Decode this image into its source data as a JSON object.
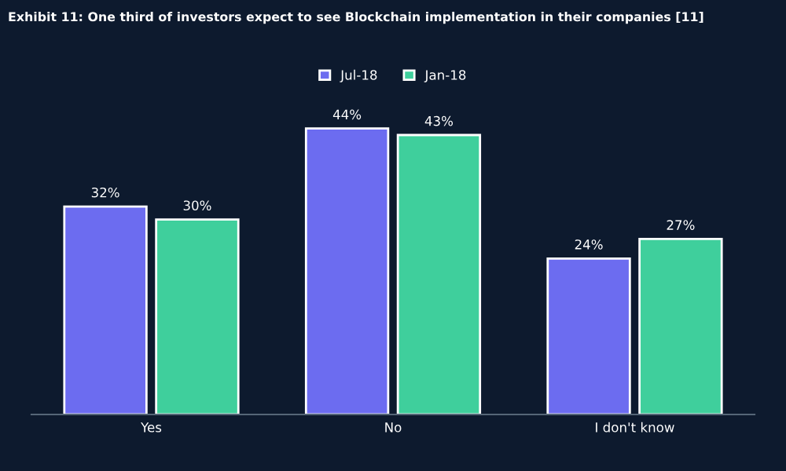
{
  "chart_data": {
    "type": "bar",
    "title": "Exhibit 11: One third of investors expect to see Blockchain implementation in their companies [11]",
    "categories": [
      "Yes",
      "No",
      "I don't know"
    ],
    "series": [
      {
        "name": "Jul-18",
        "color": "#6c6cf0",
        "values": [
          32,
          44,
          24
        ],
        "value_labels": [
          "32%",
          "44%",
          "24%"
        ]
      },
      {
        "name": "Jan-18",
        "color": "#3fcf9c",
        "values": [
          30,
          43,
          27
        ],
        "value_labels": [
          "30%",
          "43%",
          "27%"
        ]
      }
    ],
    "legend": "top",
    "grid": false
  }
}
